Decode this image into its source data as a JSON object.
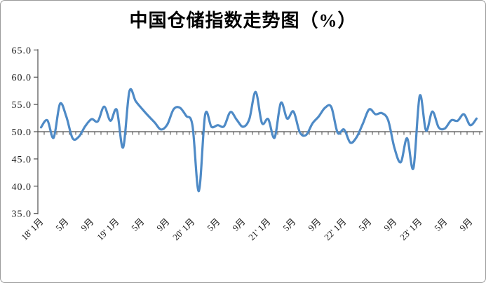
{
  "title": "中国仓储指数走势图（%）",
  "chart_data": {
    "type": "line",
    "title": "中国仓储指数走势图（%）",
    "unit": "%",
    "grid": false,
    "legend": "none",
    "x_start": "2018-01",
    "x_end": "2023-10",
    "x_freq": "monthly",
    "ylim": [
      35.0,
      65.0
    ],
    "y_tick_labels": [
      "65.0",
      "60.0",
      "55.0",
      "50.0",
      "45.0",
      "40.0",
      "35.0"
    ],
    "y_ticks": [
      65,
      60,
      55,
      50,
      45,
      40,
      35
    ],
    "x_axis_crosses_at": 50.0,
    "x_tick_labels": [
      {
        "index": 0,
        "label": "18' 1月"
      },
      {
        "index": 4,
        "label": "5月"
      },
      {
        "index": 8,
        "label": "9月"
      },
      {
        "index": 12,
        "label": "19' 1月"
      },
      {
        "index": 16,
        "label": "5月"
      },
      {
        "index": 20,
        "label": "9月"
      },
      {
        "index": 24,
        "label": "20' 1月"
      },
      {
        "index": 28,
        "label": "5月"
      },
      {
        "index": 32,
        "label": "9月"
      },
      {
        "index": 36,
        "label": "21' 1月"
      },
      {
        "index": 40,
        "label": "5月"
      },
      {
        "index": 44,
        "label": "9月"
      },
      {
        "index": 48,
        "label": "22' 1月"
      },
      {
        "index": 52,
        "label": "5月"
      },
      {
        "index": 56,
        "label": "9月"
      },
      {
        "index": 60,
        "label": "23' 1月"
      },
      {
        "index": 64,
        "label": "5月"
      },
      {
        "index": 68,
        "label": "9月"
      }
    ],
    "series": [
      {
        "name": "中国仓储指数",
        "values": [
          50.8,
          52.1,
          48.9,
          55.1,
          52.8,
          48.8,
          49.1,
          51.0,
          52.3,
          51.9,
          54.6,
          52.0,
          54.0,
          47.1,
          57.4,
          55.6,
          54.2,
          52.9,
          51.7,
          50.4,
          51.3,
          54.1,
          54.4,
          52.9,
          51.1,
          39.1,
          53.1,
          50.9,
          51.2,
          51.0,
          53.6,
          52.2,
          50.9,
          52.3,
          57.3,
          51.6,
          52.3,
          48.9,
          55.3,
          52.4,
          53.7,
          49.9,
          49.4,
          51.5,
          52.8,
          54.4,
          54.5,
          49.8,
          50.4,
          48.0,
          49.0,
          51.5,
          54.1,
          53.2,
          53.4,
          52.1,
          47.0,
          44.4,
          48.8,
          43.3,
          56.6,
          50.2,
          53.7,
          50.8,
          50.6,
          52.1,
          52.0,
          53.2,
          51.2,
          52.4
        ]
      }
    ],
    "colors": {
      "line": "#4e8ac6",
      "axis": "#4d4d4d",
      "tick": "#4d4d4d",
      "label": "#1a1a1a",
      "background": "#ffffff"
    }
  }
}
